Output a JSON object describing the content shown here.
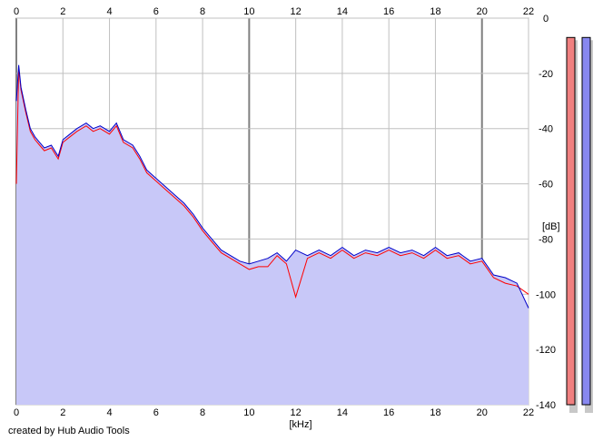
{
  "credit": "created by Hub Audio Tools",
  "colors": {
    "fill": "#c8c8f8",
    "line_left": "#ff0000",
    "line_right": "#0000c8",
    "grid": "#c0c0c0",
    "meter_left": "#f08080",
    "meter_right": "#8888f0"
  },
  "chart_data": {
    "type": "area",
    "title": "",
    "xlabel": "[kHz]",
    "ylabel": "[dB]",
    "xlim": [
      0,
      22
    ],
    "ylim": [
      -140,
      0
    ],
    "x_ticks": [
      "0",
      "2",
      "4",
      "6",
      "8",
      "10",
      "12",
      "14",
      "16",
      "18",
      "20",
      "22"
    ],
    "y_ticks": [
      "0",
      "-20",
      "-40",
      "-60",
      "-80",
      "-100",
      "-120",
      "-140"
    ],
    "grid": true,
    "x": [
      0,
      0.1,
      0.2,
      0.4,
      0.6,
      0.8,
      1.0,
      1.2,
      1.5,
      1.8,
      2.0,
      2.3,
      2.6,
      3.0,
      3.3,
      3.6,
      4.0,
      4.3,
      4.6,
      5.0,
      5.3,
      5.6,
      6.0,
      6.4,
      6.8,
      7.2,
      7.6,
      8.0,
      8.4,
      8.8,
      9.2,
      9.6,
      10.0,
      10.4,
      10.8,
      11.2,
      11.6,
      12.0,
      12.5,
      13.0,
      13.5,
      14.0,
      14.5,
      15.0,
      15.5,
      16.0,
      16.5,
      17.0,
      17.5,
      18.0,
      18.5,
      19.0,
      19.5,
      20.0,
      20.5,
      21.0,
      21.5,
      22.0
    ],
    "series": [
      {
        "color": "#0000c8",
        "values": [
          -30,
          -17,
          -25,
          -33,
          -40,
          -43,
          -45,
          -47,
          -46,
          -50,
          -44,
          -42,
          -40,
          -38,
          -40,
          -39,
          -41,
          -38,
          -44,
          -46,
          -50,
          -55,
          -58,
          -61,
          -64,
          -67,
          -71,
          -76,
          -80,
          -84,
          -86,
          -88,
          -89,
          -88,
          -87,
          -85,
          -88,
          -84,
          -86,
          -84,
          -86,
          -83,
          -86,
          -84,
          -85,
          -83,
          -85,
          -84,
          -86,
          -83,
          -86,
          -85,
          -88,
          -87,
          -93,
          -94,
          -96,
          -105
        ]
      },
      {
        "color": "#ff0000",
        "values": [
          -60,
          -18,
          -26,
          -34,
          -41,
          -44,
          -46,
          -48,
          -47,
          -51,
          -45,
          -43,
          -41,
          -39,
          -41,
          -40,
          -42,
          -39,
          -45,
          -47,
          -51,
          -56,
          -59,
          -62,
          -65,
          -68,
          -72,
          -77,
          -81,
          -85,
          -87,
          -89,
          -91,
          -90,
          -90,
          -86,
          -89,
          -101,
          -87,
          -85,
          -87,
          -84,
          -87,
          -85,
          -86,
          -84,
          -86,
          -85,
          -87,
          -84,
          -87,
          -86,
          -89,
          -88,
          -94,
          -96,
          -97,
          -100
        ]
      }
    ],
    "meters": [
      {
        "color": "#f08080",
        "level_db": -7
      },
      {
        "color": "#8888f0",
        "level_db": -7
      }
    ]
  }
}
